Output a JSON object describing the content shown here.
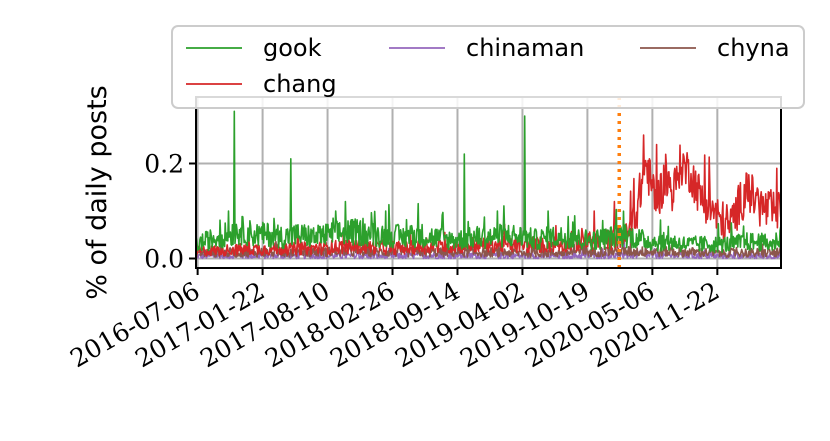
{
  "chart_data": {
    "type": "line",
    "title": "",
    "xlabel": "",
    "ylabel": "% of daily posts",
    "x_range": [
      "2016-07-01",
      "2021-06-06"
    ],
    "ylim": [
      -0.02,
      0.34
    ],
    "x_ticks": [
      "2016-07-06",
      "2017-01-22",
      "2017-08-10",
      "2018-02-26",
      "2018-09-14",
      "2019-04-02",
      "2019-10-19",
      "2020-05-06",
      "2020-11-22"
    ],
    "y_ticks": [
      0.0,
      0.2
    ],
    "y_tick_labels": [
      "0.0",
      "0.2"
    ],
    "grid": true,
    "legend_position": "top",
    "event_marker": {
      "x": "2020-01-25",
      "style": "dotted",
      "color": "#ff7f0e"
    },
    "series": [
      {
        "name": "gook",
        "color": "#2ca02c",
        "points": [
          [
            "2016-07-01",
            0.03
          ],
          [
            "2016-08-15",
            0.04
          ],
          [
            "2016-10-01",
            0.05
          ],
          [
            "2016-11-15",
            0.06
          ],
          [
            "2017-01-01",
            0.05
          ],
          [
            "2017-02-15",
            0.05
          ],
          [
            "2017-04-01",
            0.045
          ],
          [
            "2017-05-15",
            0.05
          ],
          [
            "2017-07-01",
            0.045
          ],
          [
            "2017-08-15",
            0.05
          ],
          [
            "2017-10-01",
            0.055
          ],
          [
            "2017-11-15",
            0.055
          ],
          [
            "2018-01-01",
            0.05
          ],
          [
            "2018-02-15",
            0.05
          ],
          [
            "2018-04-01",
            0.045
          ],
          [
            "2018-05-15",
            0.05
          ],
          [
            "2018-07-01",
            0.045
          ],
          [
            "2018-08-15",
            0.04
          ],
          [
            "2018-10-01",
            0.04
          ],
          [
            "2018-11-15",
            0.045
          ],
          [
            "2019-01-01",
            0.045
          ],
          [
            "2019-02-15",
            0.05
          ],
          [
            "2019-04-01",
            0.045
          ],
          [
            "2019-05-15",
            0.04
          ],
          [
            "2019-07-01",
            0.045
          ],
          [
            "2019-08-15",
            0.045
          ],
          [
            "2019-10-01",
            0.04
          ],
          [
            "2019-11-15",
            0.04
          ],
          [
            "2020-01-01",
            0.045
          ],
          [
            "2020-02-15",
            0.05
          ],
          [
            "2020-04-01",
            0.04
          ],
          [
            "2020-05-15",
            0.035
          ],
          [
            "2020-07-01",
            0.035
          ],
          [
            "2020-08-15",
            0.03
          ],
          [
            "2020-10-01",
            0.03
          ],
          [
            "2020-11-15",
            0.03
          ],
          [
            "2021-01-01",
            0.03
          ],
          [
            "2021-02-15",
            0.035
          ],
          [
            "2021-04-01",
            0.035
          ],
          [
            "2021-05-15",
            0.03
          ],
          [
            "2021-06-05",
            0.05
          ]
        ],
        "spikes": [
          [
            "2016-10-28",
            0.31
          ],
          [
            "2016-10-10",
            0.1
          ],
          [
            "2017-04-20",
            0.21
          ],
          [
            "2017-09-05",
            0.1
          ],
          [
            "2017-10-05",
            0.12
          ],
          [
            "2018-02-05",
            0.1
          ],
          [
            "2018-10-05",
            0.22
          ],
          [
            "2019-01-15",
            0.1
          ],
          [
            "2019-04-09",
            0.3
          ],
          [
            "2019-06-20",
            0.1
          ],
          [
            "2019-09-10",
            0.09
          ]
        ]
      },
      {
        "name": "chinaman",
        "color": "#9467bd",
        "points": [
          [
            "2016-07-01",
            0.005
          ],
          [
            "2017-01-01",
            0.006
          ],
          [
            "2017-07-01",
            0.006
          ],
          [
            "2018-01-01",
            0.005
          ],
          [
            "2018-07-01",
            0.006
          ],
          [
            "2019-01-01",
            0.006
          ],
          [
            "2019-07-01",
            0.005
          ],
          [
            "2020-01-01",
            0.007
          ],
          [
            "2020-07-01",
            0.006
          ],
          [
            "2021-01-01",
            0.005
          ],
          [
            "2021-06-05",
            0.005
          ]
        ],
        "spikes": [
          [
            "2017-04-05",
            0.025
          ],
          [
            "2019-05-01",
            0.03
          ],
          [
            "2020-02-10",
            0.04
          ],
          [
            "2021-03-01",
            0.02
          ]
        ]
      },
      {
        "name": "chyna",
        "color": "#8c564b",
        "points": [
          [
            "2016-07-01",
            0.012
          ],
          [
            "2017-01-01",
            0.013
          ],
          [
            "2017-07-01",
            0.014
          ],
          [
            "2018-01-01",
            0.014
          ],
          [
            "2018-07-01",
            0.013
          ],
          [
            "2019-01-01",
            0.013
          ],
          [
            "2019-07-01",
            0.012
          ],
          [
            "2020-01-01",
            0.015
          ],
          [
            "2020-07-01",
            0.014
          ],
          [
            "2021-01-01",
            0.012
          ],
          [
            "2021-06-05",
            0.012
          ]
        ],
        "spikes": [
          [
            "2017-06-01",
            0.03
          ],
          [
            "2019-10-10",
            0.035
          ],
          [
            "2020-03-01",
            0.035
          ],
          [
            "2021-04-10",
            0.03
          ]
        ]
      },
      {
        "name": "chang",
        "color": "#d62728",
        "points": [
          [
            "2016-07-01",
            0.015
          ],
          [
            "2016-10-01",
            0.018
          ],
          [
            "2017-01-01",
            0.02
          ],
          [
            "2017-04-01",
            0.02
          ],
          [
            "2017-07-01",
            0.022
          ],
          [
            "2017-10-01",
            0.025
          ],
          [
            "2018-01-01",
            0.025
          ],
          [
            "2018-04-01",
            0.022
          ],
          [
            "2018-07-01",
            0.025
          ],
          [
            "2018-10-01",
            0.028
          ],
          [
            "2019-01-01",
            0.03
          ],
          [
            "2019-04-01",
            0.028
          ],
          [
            "2019-07-01",
            0.03
          ],
          [
            "2019-10-01",
            0.035
          ],
          [
            "2020-01-01",
            0.04
          ],
          [
            "2020-02-20",
            0.05
          ],
          [
            "2020-03-15",
            0.09
          ],
          [
            "2020-04-01",
            0.15
          ],
          [
            "2020-04-15",
            0.2
          ],
          [
            "2020-05-01",
            0.16
          ],
          [
            "2020-05-20",
            0.12
          ],
          [
            "2020-06-15",
            0.17
          ],
          [
            "2020-07-10",
            0.14
          ],
          [
            "2020-08-01",
            0.2
          ],
          [
            "2020-09-01",
            0.18
          ],
          [
            "2020-10-01",
            0.13
          ],
          [
            "2020-11-01",
            0.11
          ],
          [
            "2020-12-01",
            0.08
          ],
          [
            "2021-01-01",
            0.07
          ],
          [
            "2021-02-01",
            0.12
          ],
          [
            "2021-03-01",
            0.14
          ],
          [
            "2021-04-01",
            0.11
          ],
          [
            "2021-05-01",
            0.1
          ],
          [
            "2021-06-05",
            0.1
          ]
        ],
        "spikes": [
          [
            "2019-11-10",
            0.1
          ],
          [
            "2020-01-10",
            0.12
          ],
          [
            "2020-04-10",
            0.26
          ],
          [
            "2020-05-20",
            0.24
          ],
          [
            "2020-08-10",
            0.22
          ],
          [
            "2021-02-20",
            0.18
          ],
          [
            "2021-05-25",
            0.19
          ]
        ]
      }
    ]
  }
}
